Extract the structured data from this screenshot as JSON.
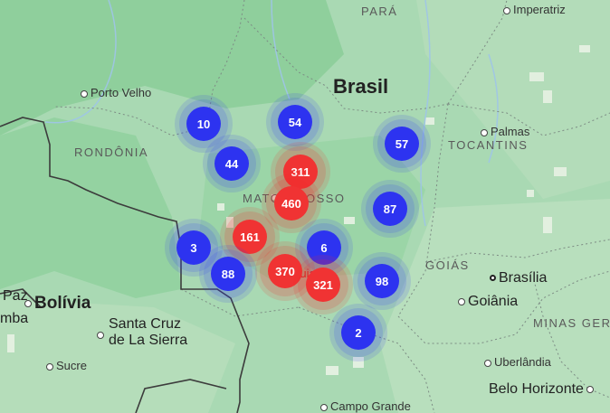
{
  "labels": {
    "para": "PARÁ",
    "imperatriz": "Imperatriz",
    "brasil": "Brasil",
    "porto_velho": "Porto Velho",
    "rondonia": "RONDÔNIA",
    "palmas": "Palmas",
    "tocantins": "TOCANTINS",
    "mato_grosso": "MATO GROSSO",
    "goias": "GOIÁS",
    "brasilia": "Brasília",
    "goiania": "Goiânia",
    "paz": "Paz",
    "bolivia": "Bolívia",
    "mba": "mba",
    "santa_cruz_1": "Santa Cruz",
    "santa_cruz_2": "de La Sierra",
    "minas_gerais": "MINAS GER",
    "sucre": "Sucre",
    "uberlandia": "Uberlândia",
    "cuiaba": "Cuiabá",
    "belo_horizonte": "Belo Horizonte",
    "campo_grande": "Campo Grande"
  },
  "colors": {
    "land": "#a9d9b3",
    "forest": "#8fcf9c",
    "cluster_blue": "#2d33f0",
    "cluster_red": "#f03333"
  },
  "clusters": [
    {
      "count": "10",
      "color": "blue"
    },
    {
      "count": "54",
      "color": "blue"
    },
    {
      "count": "57",
      "color": "blue"
    },
    {
      "count": "44",
      "color": "blue"
    },
    {
      "count": "311",
      "color": "red"
    },
    {
      "count": "460",
      "color": "red"
    },
    {
      "count": "87",
      "color": "blue"
    },
    {
      "count": "161",
      "color": "red"
    },
    {
      "count": "3",
      "color": "blue"
    },
    {
      "count": "6",
      "color": "blue"
    },
    {
      "count": "88",
      "color": "blue"
    },
    {
      "count": "370",
      "color": "red"
    },
    {
      "count": "321",
      "color": "red"
    },
    {
      "count": "98",
      "color": "blue"
    },
    {
      "count": "2",
      "color": "blue"
    }
  ]
}
